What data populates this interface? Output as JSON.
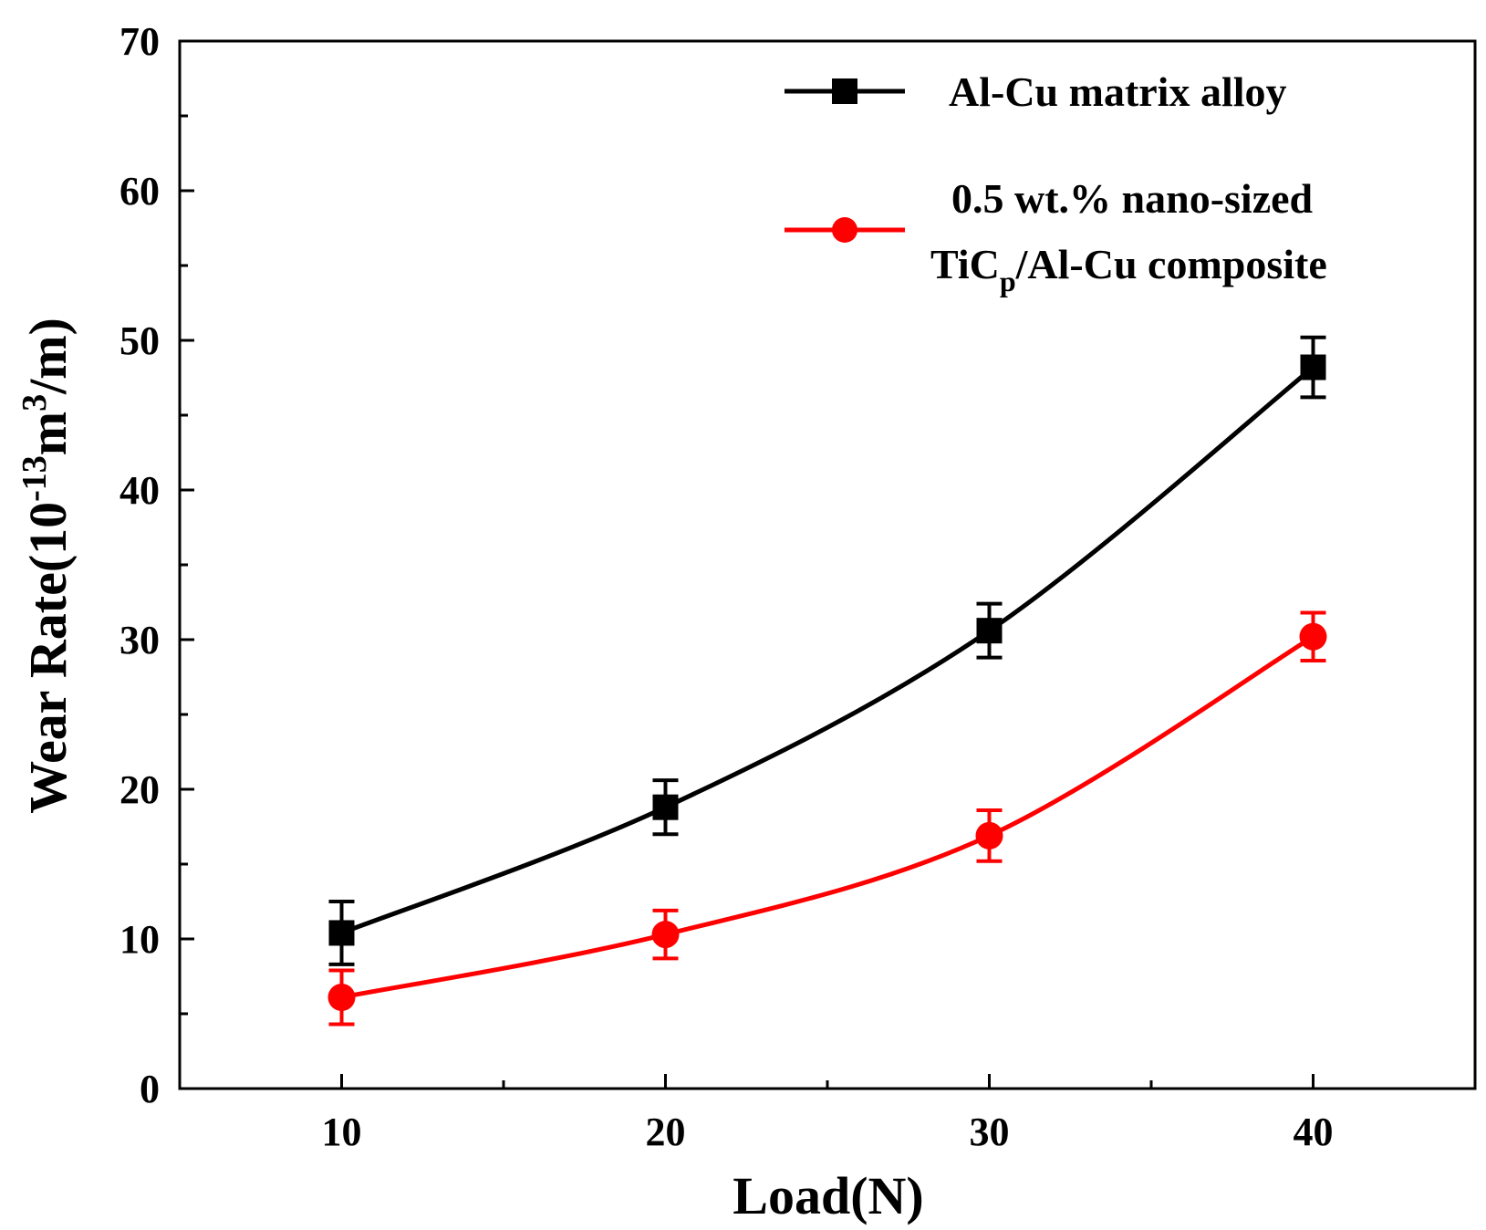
{
  "chart_data": {
    "type": "line",
    "xlabel": "Load(N)",
    "ylabel": {
      "prefix": "Wear Rate(10",
      "exp1": "-13",
      "mid": "m",
      "exp2": "3",
      "suffix": "/m)"
    },
    "xlim": [
      5,
      45
    ],
    "ylim": [
      0,
      70
    ],
    "x_ticks": [
      10,
      20,
      30,
      40
    ],
    "x_tick_labels": [
      "10",
      "20",
      "30",
      "40"
    ],
    "y_ticks": [
      0,
      10,
      20,
      30,
      40,
      50,
      60,
      70
    ],
    "y_tick_labels": [
      "0",
      "10",
      "20",
      "30",
      "40",
      "50",
      "60",
      "70"
    ],
    "grid": false,
    "legend_position": "top-right",
    "series": [
      {
        "name": "Al-Cu matrix alloy",
        "color": "#000000",
        "marker": "square",
        "x": [
          10,
          20,
          30,
          40
        ],
        "y": [
          10.4,
          18.8,
          30.6,
          48.2
        ],
        "error": [
          2.1,
          1.8,
          1.8,
          2.0
        ]
      },
      {
        "name_line1": "0.5 wt.% nano-sized",
        "name_line2_prefix": "TiC",
        "name_line2_sub": "p",
        "name_line2_suffix": "/Al-Cu composite",
        "color": "#ff0000",
        "marker": "circle",
        "x": [
          10,
          20,
          30,
          40
        ],
        "y": [
          6.1,
          10.3,
          16.9,
          30.2
        ],
        "error": [
          1.8,
          1.6,
          1.7,
          1.6
        ]
      }
    ]
  }
}
